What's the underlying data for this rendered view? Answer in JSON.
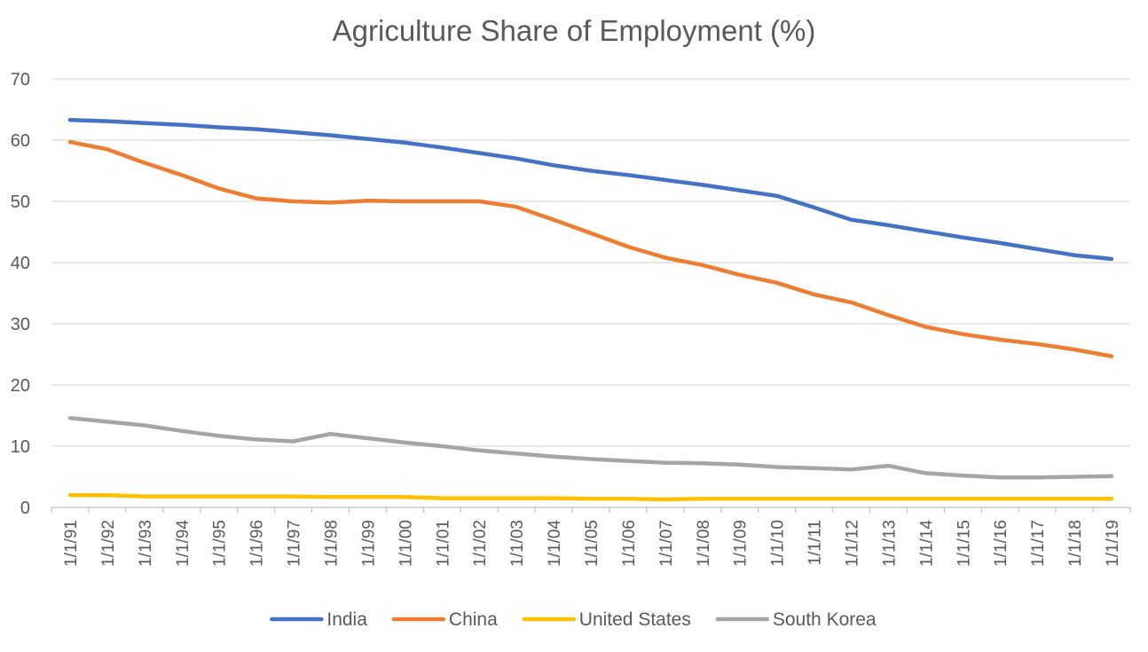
{
  "chart_data": {
    "type": "line",
    "title": "Agriculture Share of Employment (%)",
    "xlabel": "",
    "ylabel": "",
    "ylim": [
      0,
      70
    ],
    "yticks": [
      "0",
      "10",
      "20",
      "30",
      "40",
      "50",
      "60",
      "70"
    ],
    "grid": true,
    "legend_position": "bottom",
    "categories": [
      "1/1/91",
      "1/1/92",
      "1/1/93",
      "1/1/94",
      "1/1/95",
      "1/1/96",
      "1/1/97",
      "1/1/98",
      "1/1/99",
      "1/1/00",
      "1/1/01",
      "1/1/02",
      "1/1/03",
      "1/1/04",
      "1/1/05",
      "1/1/06",
      "1/1/07",
      "1/1/08",
      "1/1/09",
      "1/1/10",
      "1/1/11",
      "1/1/12",
      "1/1/13",
      "1/1/14",
      "1/1/15",
      "1/1/16",
      "1/1/17",
      "1/1/18",
      "1/1/19"
    ],
    "series": [
      {
        "name": "India",
        "color": "#4472c4",
        "values": [
          63.3,
          63.1,
          62.8,
          62.5,
          62.1,
          61.8,
          61.3,
          60.8,
          60.2,
          59.6,
          58.8,
          57.9,
          57.0,
          55.9,
          55.0,
          54.3,
          53.5,
          52.7,
          51.8,
          50.9,
          49.0,
          47.0,
          46.1,
          45.1,
          44.1,
          43.2,
          42.2,
          41.2,
          40.6
        ]
      },
      {
        "name": "China",
        "color": "#ed7d31",
        "values": [
          59.7,
          58.5,
          56.3,
          54.3,
          52.1,
          50.5,
          50.0,
          49.8,
          50.1,
          50.0,
          50.0,
          50.0,
          49.1,
          47.0,
          44.8,
          42.6,
          40.8,
          39.6,
          38.0,
          36.7,
          34.8,
          33.5,
          31.4,
          29.5,
          28.3,
          27.4,
          26.7,
          25.8,
          24.7
        ]
      },
      {
        "name": "United States",
        "color": "#ffc000",
        "values": [
          2.0,
          2.0,
          1.8,
          1.8,
          1.8,
          1.8,
          1.8,
          1.7,
          1.7,
          1.7,
          1.5,
          1.5,
          1.5,
          1.5,
          1.4,
          1.4,
          1.3,
          1.4,
          1.4,
          1.4,
          1.4,
          1.4,
          1.4,
          1.4,
          1.4,
          1.4,
          1.4,
          1.4,
          1.4
        ]
      },
      {
        "name": "South Korea",
        "color": "#a5a5a5",
        "values": [
          14.6,
          14.0,
          13.4,
          12.5,
          11.7,
          11.1,
          10.8,
          12.0,
          11.3,
          10.6,
          10.0,
          9.3,
          8.8,
          8.3,
          7.9,
          7.6,
          7.3,
          7.2,
          7.0,
          6.6,
          6.4,
          6.2,
          6.8,
          5.6,
          5.2,
          4.9,
          4.9,
          5.0,
          5.1
        ]
      }
    ]
  }
}
